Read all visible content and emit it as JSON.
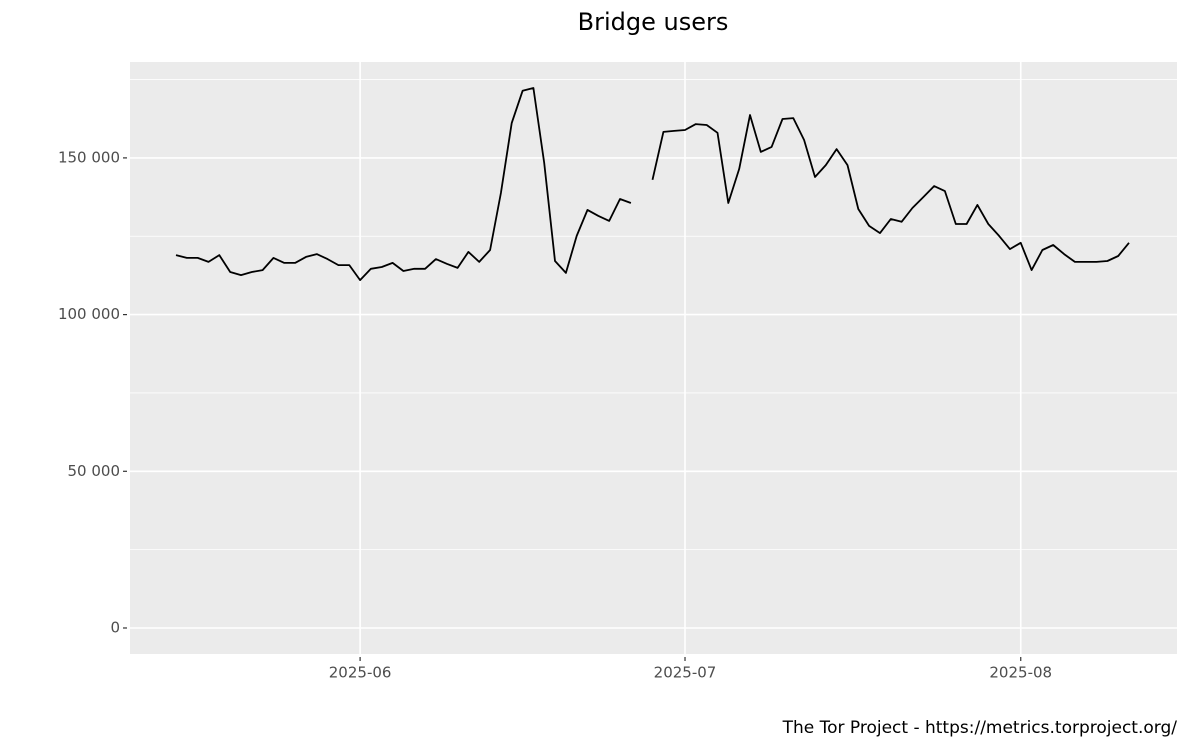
{
  "chart_data": {
    "type": "line",
    "title": "Bridge users",
    "caption": "The Tor Project - https://metrics.torproject.org/",
    "categories": [
      null,
      null,
      null,
      null,
      null,
      null,
      null,
      null,
      null,
      null,
      null,
      null,
      null,
      null,
      null,
      null,
      null,
      "2025-06",
      null,
      null,
      null,
      null,
      null,
      null,
      null,
      null,
      null,
      null,
      null,
      null,
      null,
      null,
      null,
      null,
      null,
      null,
      null,
      null,
      null,
      null,
      null,
      null,
      null,
      null,
      null,
      null,
      null,
      "2025-07",
      null,
      null,
      null,
      null,
      null,
      null,
      null,
      null,
      null,
      null,
      null,
      null,
      null,
      null,
      null,
      null,
      null,
      null,
      null,
      null,
      null,
      null,
      null,
      null,
      null,
      null,
      null,
      null,
      null,
      null,
      "2025-08",
      null,
      null,
      null,
      null,
      null,
      null,
      null,
      null,
      null,
      null
    ],
    "series": [
      {
        "color": "#000000",
        "values": [
          119000,
          118100,
          118100,
          116800,
          119000,
          113600,
          112600,
          113600,
          114200,
          118100,
          116500,
          116500,
          118400,
          119300,
          117700,
          115800,
          115800,
          111000,
          114600,
          115200,
          116500,
          113900,
          114600,
          114600,
          117700,
          116200,
          114900,
          120000,
          116800,
          120600,
          138800,
          161100,
          171400,
          172300,
          148400,
          117100,
          113300,
          125100,
          133400,
          131500,
          129900,
          136900,
          135600,
          null,
          143000,
          158300,
          158600,
          158900,
          160800,
          160500,
          158000,
          135600,
          146500,
          163700,
          151900,
          153500,
          162400,
          162700,
          155700,
          143900,
          147700,
          152800,
          147700,
          133700,
          128300,
          126000,
          130500,
          129600,
          134000,
          137500,
          141000,
          139400,
          128900,
          128900,
          135000,
          128900,
          125100,
          120900,
          122900,
          114200,
          120600,
          122200,
          119300,
          116800,
          116800,
          116800,
          117100,
          118700,
          122900
        ]
      }
    ],
    "ylim": [
      -8300,
      180600
    ],
    "yticks": [
      {
        "value": 0,
        "label": "0"
      },
      {
        "value": 50000,
        "label": "50 000"
      },
      {
        "value": 100000,
        "label": "100 000"
      },
      {
        "value": 150000,
        "label": "150 000"
      }
    ],
    "grid": true
  }
}
